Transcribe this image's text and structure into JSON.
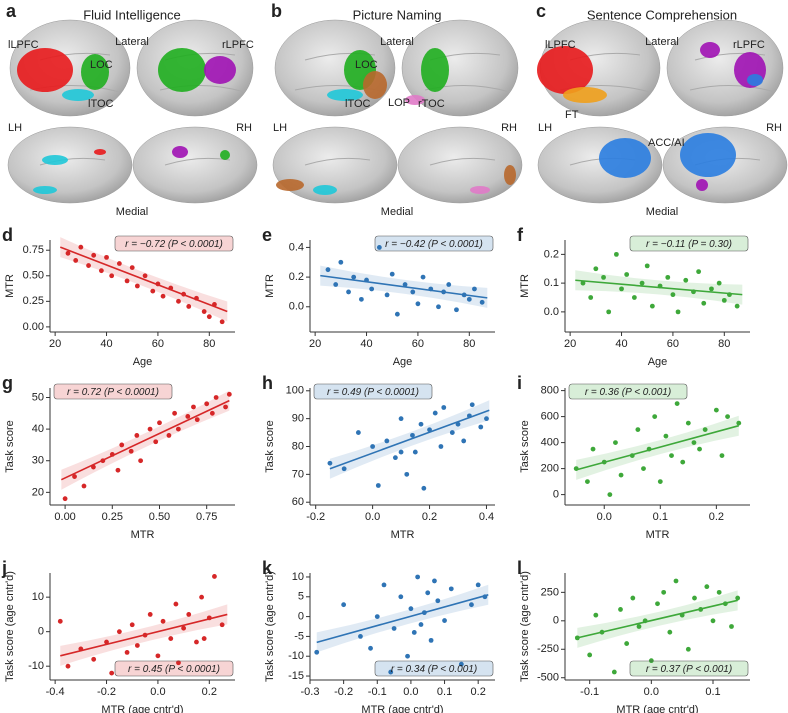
{
  "brain_panels": [
    {
      "letter": "a",
      "title": "Fluid Intelligence",
      "lateral": "Lateral",
      "medial": "Medial",
      "lh": "LH",
      "rh": "RH",
      "regions": [
        {
          "label": "lLPFC",
          "color": "#e8191c"
        },
        {
          "label": "LOC",
          "color": "#1fae1f"
        },
        {
          "label": "lTOC",
          "color": "#1fc8d8"
        },
        {
          "label": "rLPFC",
          "color": "#a012b4"
        }
      ]
    },
    {
      "letter": "b",
      "title": "Picture Naming",
      "lateral": "Lateral",
      "medial": "Medial",
      "lh": "LH",
      "rh": "RH",
      "regions": [
        {
          "label": "LOC",
          "color": "#1fae1f"
        },
        {
          "label": "lTOC",
          "color": "#1fc8d8"
        },
        {
          "label": "LOP",
          "color": "#b8682c"
        },
        {
          "label": "rTOC",
          "color": "#e07ac8"
        }
      ]
    },
    {
      "letter": "c",
      "title": "Sentence Comprehension",
      "lateral": "Lateral",
      "medial": "Medial",
      "lh": "LH",
      "rh": "RH",
      "regions": [
        {
          "label": "lLPFC",
          "color": "#e8191c"
        },
        {
          "label": "rLPFC",
          "color": "#a012b4"
        },
        {
          "label": "FT",
          "color": "#f0a01c"
        },
        {
          "label": "ACC/AI",
          "color": "#2a7de0"
        }
      ]
    }
  ],
  "chart_data": [
    {
      "type": "scatter",
      "panel": "d",
      "xlabel": "Age",
      "ylabel": "MTR",
      "annotation": "r = −0.72 (P < 0.0001)",
      "annotation_corner": "upper right",
      "color": "#d62728",
      "xlim": [
        18,
        90
      ],
      "ylim": [
        -0.05,
        0.85
      ],
      "xticks": [
        20,
        40,
        60,
        80
      ],
      "yticks": [
        {
          "value": 0,
          "label": "0.00"
        },
        0.25,
        {
          "value": 0.5,
          "label": "0.50"
        },
        0.75
      ],
      "x": [
        25,
        28,
        30,
        33,
        35,
        38,
        40,
        42,
        45,
        48,
        50,
        52,
        55,
        58,
        60,
        62,
        65,
        68,
        70,
        72,
        75,
        78,
        80,
        82,
        85
      ],
      "y": [
        0.72,
        0.65,
        0.78,
        0.6,
        0.7,
        0.55,
        0.68,
        0.5,
        0.62,
        0.45,
        0.58,
        0.4,
        0.5,
        0.35,
        0.42,
        0.3,
        0.38,
        0.25,
        0.32,
        0.2,
        0.28,
        0.15,
        0.1,
        0.22,
        0.05
      ],
      "fit_x": [
        22,
        87
      ],
      "fit_y": [
        0.78,
        0.15
      ]
    },
    {
      "type": "scatter",
      "panel": "e",
      "xlabel": "Age",
      "ylabel": "MTR",
      "annotation": "r = −0.42 (P < 0.0001)",
      "annotation_corner": "upper right",
      "color": "#2f74b5",
      "xlim": [
        18,
        90
      ],
      "ylim": [
        -0.17,
        0.45
      ],
      "xticks": [
        20,
        40,
        60,
        80
      ],
      "yticks": [
        {
          "value": 0,
          "label": "0.0"
        },
        0.2,
        0.4
      ],
      "x": [
        25,
        28,
        30,
        33,
        35,
        38,
        40,
        42,
        45,
        48,
        50,
        52,
        55,
        58,
        60,
        62,
        65,
        68,
        70,
        72,
        75,
        78,
        80,
        82,
        85
      ],
      "y": [
        0.25,
        0.15,
        0.3,
        0.1,
        0.2,
        0.05,
        0.18,
        0.12,
        0.4,
        0.08,
        0.22,
        -0.05,
        0.15,
        0.1,
        0.02,
        0.2,
        0.12,
        0.0,
        0.1,
        0.15,
        -0.02,
        0.08,
        0.05,
        0.12,
        0.03
      ],
      "fit_x": [
        22,
        87
      ],
      "fit_y": [
        0.21,
        0.06
      ]
    },
    {
      "type": "scatter",
      "panel": "f",
      "xlabel": "Age",
      "ylabel": "MTR",
      "annotation": "r = −0.11 (P = 0.30)",
      "annotation_corner": "upper right",
      "color": "#3ea83a",
      "xlim": [
        18,
        90
      ],
      "ylim": [
        -0.07,
        0.25
      ],
      "xticks": [
        20,
        40,
        60,
        80
      ],
      "yticks": [
        {
          "value": 0,
          "label": "0.0"
        },
        0.1,
        0.2
      ],
      "x": [
        25,
        28,
        30,
        33,
        35,
        38,
        40,
        42,
        45,
        48,
        50,
        52,
        55,
        58,
        60,
        62,
        65,
        68,
        70,
        72,
        75,
        78,
        80,
        82,
        85
      ],
      "y": [
        0.1,
        0.05,
        0.15,
        0.12,
        0.0,
        0.2,
        0.08,
        0.13,
        0.05,
        0.1,
        0.16,
        0.02,
        0.09,
        0.12,
        0.06,
        0.0,
        0.11,
        0.07,
        0.14,
        0.03,
        0.08,
        0.1,
        0.04,
        0.06,
        0.02
      ],
      "fit_x": [
        22,
        87
      ],
      "fit_y": [
        0.11,
        0.06
      ]
    },
    {
      "type": "scatter",
      "panel": "g",
      "xlabel": "MTR",
      "ylabel": "Task score",
      "annotation": "r = 0.72 (P < 0.0001)",
      "annotation_corner": "upper left",
      "color": "#d62728",
      "xlim": [
        -0.08,
        0.9
      ],
      "ylim": [
        16,
        53
      ],
      "xticks": [
        {
          "value": 0,
          "label": "0.00"
        },
        0.25,
        {
          "value": 0.5,
          "label": "0.50"
        },
        0.75
      ],
      "yticks": [
        20,
        30,
        40,
        50
      ],
      "x": [
        0.0,
        0.05,
        0.1,
        0.15,
        0.2,
        0.25,
        0.28,
        0.3,
        0.35,
        0.38,
        0.4,
        0.45,
        0.48,
        0.5,
        0.55,
        0.58,
        0.6,
        0.65,
        0.68,
        0.7,
        0.75,
        0.78,
        0.8,
        0.85,
        0.87
      ],
      "y": [
        18,
        25,
        22,
        28,
        30,
        32,
        27,
        35,
        33,
        38,
        30,
        40,
        36,
        42,
        38,
        45,
        40,
        44,
        47,
        43,
        48,
        45,
        50,
        47,
        51
      ],
      "fit_x": [
        -0.02,
        0.87
      ],
      "fit_y": [
        24,
        49
      ]
    },
    {
      "type": "scatter",
      "panel": "h",
      "xlabel": "MTR",
      "ylabel": "Task score",
      "annotation": "r = 0.49 (P < 0.0001)",
      "annotation_corner": "upper left",
      "color": "#2f74b5",
      "xlim": [
        -0.22,
        0.43
      ],
      "ylim": [
        59,
        101
      ],
      "xticks": [
        -0.2,
        {
          "value": 0,
          "label": "0.0"
        },
        0.2,
        0.4
      ],
      "yticks": [
        60,
        70,
        80,
        90,
        100
      ],
      "x": [
        -0.15,
        -0.1,
        -0.05,
        0.0,
        0.02,
        0.05,
        0.08,
        0.1,
        0.12,
        0.14,
        0.15,
        0.17,
        0.18,
        0.2,
        0.22,
        0.24,
        0.25,
        0.28,
        0.3,
        0.32,
        0.34,
        0.35,
        0.38,
        0.4,
        0.1
      ],
      "y": [
        74,
        72,
        85,
        80,
        66,
        82,
        76,
        90,
        70,
        84,
        78,
        88,
        65,
        86,
        92,
        80,
        94,
        85,
        88,
        82,
        91,
        95,
        87,
        90,
        78
      ],
      "fit_x": [
        -0.15,
        0.41
      ],
      "fit_y": [
        72,
        93
      ]
    },
    {
      "type": "scatter",
      "panel": "i",
      "xlabel": "MTR",
      "ylabel": "Task score",
      "annotation": "r = 0.36 (P < 0.001)",
      "annotation_corner": "upper left",
      "color": "#3ea83a",
      "xlim": [
        -0.07,
        0.26
      ],
      "ylim": [
        -80,
        820
      ],
      "xticks": [
        {
          "value": 0,
          "label": "0.0"
        },
        0.1,
        0.2
      ],
      "yticks": [
        0,
        200,
        400,
        600,
        800
      ],
      "x": [
        -0.05,
        -0.03,
        -0.02,
        0.0,
        0.01,
        0.02,
        0.03,
        0.05,
        0.06,
        0.07,
        0.08,
        0.09,
        0.1,
        0.11,
        0.12,
        0.13,
        0.14,
        0.15,
        0.16,
        0.17,
        0.18,
        0.2,
        0.21,
        0.22,
        0.24
      ],
      "y": [
        200,
        100,
        350,
        250,
        0,
        400,
        150,
        300,
        500,
        200,
        350,
        600,
        100,
        450,
        300,
        700,
        250,
        550,
        400,
        350,
        500,
        650,
        300,
        600,
        550
      ],
      "fit_x": [
        -0.05,
        0.24
      ],
      "fit_y": [
        190,
        530
      ]
    },
    {
      "type": "scatter",
      "panel": "j",
      "xlabel": "MTR (age cntr'd)",
      "ylabel": "Task score (age cntr'd)",
      "annotation": "r = 0.45 (P < 0.0001)",
      "annotation_corner": "lower right",
      "color": "#d62728",
      "xlim": [
        -0.42,
        0.3
      ],
      "ylim": [
        -14,
        17
      ],
      "xticks": [
        -0.4,
        -0.2,
        {
          "value": 0,
          "label": "0.0"
        },
        0.2
      ],
      "yticks": [
        -10,
        0,
        10
      ],
      "x": [
        -0.38,
        -0.35,
        -0.3,
        -0.25,
        -0.2,
        -0.18,
        -0.15,
        -0.12,
        -0.1,
        -0.08,
        -0.05,
        -0.03,
        0.0,
        0.02,
        0.05,
        0.07,
        0.1,
        0.12,
        0.15,
        0.17,
        0.2,
        0.22,
        0.25,
        0.18,
        0.08
      ],
      "y": [
        3,
        -10,
        -5,
        -8,
        -3,
        -12,
        0,
        -6,
        2,
        -4,
        -1,
        5,
        -7,
        3,
        -2,
        8,
        1,
        5,
        -3,
        10,
        4,
        16,
        2,
        -2,
        -9
      ],
      "fit_x": [
        -0.38,
        0.27
      ],
      "fit_y": [
        -7,
        5
      ]
    },
    {
      "type": "scatter",
      "panel": "k",
      "xlabel": "MTR (age cntr'd)",
      "ylabel": "Task score (age cntr'd)",
      "annotation": "r = 0.34 (P < 0.001)",
      "annotation_corner": "lower right",
      "color": "#2f74b5",
      "xlim": [
        -0.3,
        0.25
      ],
      "ylim": [
        -16,
        11
      ],
      "xticks": [
        -0.3,
        -0.2,
        -0.1,
        {
          "value": 0,
          "label": "0.0"
        },
        0.1,
        0.2
      ],
      "yticks": [
        -15,
        -10,
        -5,
        0,
        5,
        10
      ],
      "x": [
        -0.28,
        -0.2,
        -0.15,
        -0.1,
        -0.08,
        -0.05,
        -0.03,
        -0.01,
        0.0,
        0.02,
        0.03,
        0.05,
        0.06,
        0.08,
        0.1,
        0.12,
        0.15,
        0.18,
        0.2,
        0.22,
        -0.12,
        0.04,
        0.07,
        0.01,
        -0.06
      ],
      "y": [
        -9,
        3,
        -5,
        0,
        8,
        -3,
        5,
        -10,
        2,
        10,
        -2,
        6,
        -6,
        4,
        -1,
        7,
        -12,
        3,
        8,
        5,
        -8,
        1,
        9,
        -4,
        -14
      ],
      "fit_x": [
        -0.28,
        0.23
      ],
      "fit_y": [
        -6.5,
        5.5
      ]
    },
    {
      "type": "scatter",
      "panel": "l",
      "xlabel": "MTR (age cntr'd)",
      "ylabel": "Task score (age cntr'd)",
      "annotation": "r = 0.37 (P < 0.001)",
      "annotation_corner": "lower right",
      "color": "#3ea83a",
      "xlim": [
        -0.14,
        0.16
      ],
      "ylim": [
        -520,
        420
      ],
      "xticks": [
        -0.1,
        {
          "value": 0,
          "label": "0.0"
        },
        0.1
      ],
      "yticks": [
        -500,
        -250,
        0,
        250
      ],
      "x": [
        -0.12,
        -0.1,
        -0.09,
        -0.08,
        -0.06,
        -0.05,
        -0.04,
        -0.03,
        -0.02,
        -0.01,
        0.0,
        0.01,
        0.02,
        0.03,
        0.04,
        0.05,
        0.06,
        0.07,
        0.08,
        0.09,
        0.1,
        0.11,
        0.12,
        0.13,
        0.14
      ],
      "y": [
        -150,
        -300,
        50,
        -100,
        -450,
        100,
        -200,
        200,
        -50,
        0,
        -350,
        150,
        250,
        -100,
        350,
        50,
        -250,
        200,
        100,
        300,
        0,
        250,
        150,
        -50,
        200
      ],
      "fit_x": [
        -0.12,
        0.14
      ],
      "fit_y": [
        -150,
        180
      ]
    }
  ]
}
